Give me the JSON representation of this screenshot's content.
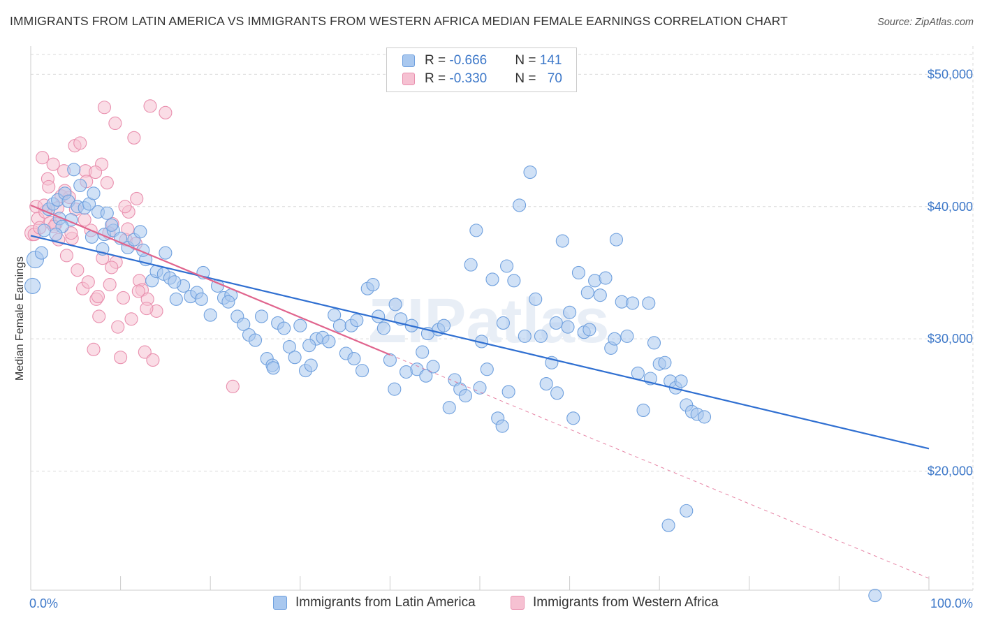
{
  "title": "IMMIGRANTS FROM LATIN AMERICA VS IMMIGRANTS FROM WESTERN AFRICA MEDIAN FEMALE EARNINGS CORRELATION CHART",
  "source": "Source: ZipAtlas.com",
  "watermark": "ZIPatlas",
  "colors": {
    "blue_fill": "#a9c8ef",
    "blue_stroke": "#6fa0de",
    "blue_line": "#2f6fd1",
    "pink_fill": "#f6c1d2",
    "pink_stroke": "#e98fae",
    "pink_line": "#e0648d",
    "grid": "#d9d9d9",
    "tick_label": "#3d78c9"
  },
  "legend": {
    "rows": [
      {
        "r_label": "R = ",
        "r_value": "-0.666",
        "n_label": "N = ",
        "n_value": "141"
      },
      {
        "r_label": "R = ",
        "r_value": "-0.330",
        "n_label": "N = ",
        "n_value": "70"
      }
    ]
  },
  "chart_data": {
    "type": "scatter",
    "ylabel": "Median Female Earnings",
    "xlabel": "",
    "x_ticks": [
      "0.0%",
      "100.0%"
    ],
    "y_ticks": [
      "$20,000",
      "$30,000",
      "$40,000",
      "$50,000"
    ],
    "y_tick_values": [
      20000,
      30000,
      40000,
      50000
    ],
    "xlim": [
      0,
      100
    ],
    "ylim": [
      11000,
      51500
    ],
    "grid": true,
    "legend_position": "top-center",
    "series": [
      {
        "name": "Immigrants from Latin America",
        "color": "blue",
        "r": -0.666,
        "n": 141,
        "trend": {
          "x": [
            0,
            100
          ],
          "y": [
            37800,
            21700
          ]
        },
        "points": [
          [
            0.2,
            34000
          ],
          [
            0.5,
            36000
          ],
          [
            1.5,
            38200
          ],
          [
            2,
            39800
          ],
          [
            2.5,
            40200
          ],
          [
            3,
            40500
          ],
          [
            3.2,
            39100
          ],
          [
            3.8,
            41000
          ],
          [
            4.2,
            40400
          ],
          [
            4.8,
            42800
          ],
          [
            5.2,
            40000
          ],
          [
            5.5,
            41600
          ],
          [
            6,
            39900
          ],
          [
            6.5,
            40200
          ],
          [
            7,
            41000
          ],
          [
            7.5,
            39600
          ],
          [
            8.2,
            37900
          ],
          [
            8.5,
            39500
          ],
          [
            9.2,
            38200
          ],
          [
            10,
            37600
          ],
          [
            10.8,
            36900
          ],
          [
            11.5,
            37500
          ],
          [
            12.2,
            38100
          ],
          [
            12.8,
            36000
          ],
          [
            13.5,
            34400
          ],
          [
            14,
            35100
          ],
          [
            14.8,
            34900
          ],
          [
            15.5,
            34600
          ],
          [
            16.2,
            33000
          ],
          [
            17,
            34000
          ],
          [
            17.8,
            33200
          ],
          [
            18.5,
            33500
          ],
          [
            19.2,
            35000
          ],
          [
            20,
            31800
          ],
          [
            20.8,
            34000
          ],
          [
            21.5,
            33100
          ],
          [
            22.3,
            33300
          ],
          [
            23,
            31700
          ],
          [
            23.7,
            31100
          ],
          [
            24.3,
            30300
          ],
          [
            25,
            29900
          ],
          [
            25.7,
            31700
          ],
          [
            26.3,
            28500
          ],
          [
            26.9,
            28000
          ],
          [
            27.5,
            31200
          ],
          [
            28.2,
            30800
          ],
          [
            28.8,
            29400
          ],
          [
            29.4,
            28600
          ],
          [
            30,
            31000
          ],
          [
            30.6,
            27600
          ],
          [
            31.2,
            28000
          ],
          [
            31.8,
            30000
          ],
          [
            32.5,
            30100
          ],
          [
            33.2,
            29800
          ],
          [
            33.8,
            31800
          ],
          [
            34.4,
            31000
          ],
          [
            35.1,
            28900
          ],
          [
            35.7,
            31000
          ],
          [
            36.3,
            31400
          ],
          [
            36.9,
            27600
          ],
          [
            37.5,
            33800
          ],
          [
            38.1,
            34100
          ],
          [
            38.7,
            31700
          ],
          [
            39.3,
            30800
          ],
          [
            40,
            28400
          ],
          [
            40.6,
            32600
          ],
          [
            41.2,
            31500
          ],
          [
            41.8,
            27500
          ],
          [
            42.4,
            31000
          ],
          [
            43,
            27700
          ],
          [
            43.6,
            29000
          ],
          [
            44.2,
            30400
          ],
          [
            44.8,
            27900
          ],
          [
            45.4,
            30700
          ],
          [
            46,
            31000
          ],
          [
            46.6,
            24800
          ],
          [
            47.2,
            26900
          ],
          [
            47.8,
            26200
          ],
          [
            48.4,
            25700
          ],
          [
            49,
            35600
          ],
          [
            49.6,
            38200
          ],
          [
            50.2,
            29800
          ],
          [
            50.8,
            27700
          ],
          [
            51.4,
            34500
          ],
          [
            52,
            24000
          ],
          [
            52.6,
            31200
          ],
          [
            53.2,
            26000
          ],
          [
            53.8,
            34400
          ],
          [
            54.4,
            40100
          ],
          [
            55,
            30200
          ],
          [
            55.6,
            42600
          ],
          [
            56.2,
            33000
          ],
          [
            56.8,
            30200
          ],
          [
            57.4,
            26600
          ],
          [
            58,
            28200
          ],
          [
            58.6,
            25900
          ],
          [
            59.2,
            37400
          ],
          [
            59.8,
            30900
          ],
          [
            60.4,
            24000
          ],
          [
            61,
            35000
          ],
          [
            61.6,
            30500
          ],
          [
            62.2,
            30700
          ],
          [
            62.8,
            34400
          ],
          [
            63.4,
            33300
          ],
          [
            64,
            34600
          ],
          [
            64.6,
            29300
          ],
          [
            65.2,
            37500
          ],
          [
            65.8,
            32800
          ],
          [
            66.4,
            30200
          ],
          [
            67,
            32700
          ],
          [
            67.6,
            27400
          ],
          [
            68.2,
            24600
          ],
          [
            68.8,
            32700
          ],
          [
            69.4,
            29700
          ],
          [
            70,
            28100
          ],
          [
            70.6,
            28200
          ],
          [
            71.2,
            26800
          ],
          [
            71.8,
            26300
          ],
          [
            72.4,
            26800
          ],
          [
            73,
            25000
          ],
          [
            73.6,
            24500
          ],
          [
            74.2,
            24300
          ],
          [
            75,
            24100
          ],
          [
            52.5,
            23400
          ],
          [
            71,
            15900
          ],
          [
            73,
            17000
          ],
          [
            94,
            10600
          ],
          [
            22,
            32800
          ],
          [
            19,
            33000
          ],
          [
            16,
            34300
          ],
          [
            12.5,
            36700
          ],
          [
            9,
            38600
          ],
          [
            8,
            36800
          ],
          [
            6.8,
            37700
          ],
          [
            4.5,
            39000
          ],
          [
            3.5,
            38500
          ],
          [
            2.8,
            37900
          ],
          [
            1.2,
            36500
          ],
          [
            15,
            36500
          ],
          [
            27,
            27800
          ],
          [
            36,
            28500
          ],
          [
            44,
            27200
          ],
          [
            58.5,
            31200
          ],
          [
            62,
            33500
          ],
          [
            65,
            30000
          ],
          [
            69,
            27000
          ],
          [
            50,
            26300
          ],
          [
            40.5,
            26200
          ],
          [
            53,
            35500
          ],
          [
            60,
            32000
          ],
          [
            31,
            29500
          ]
        ]
      },
      {
        "name": "Immigrants from Western Africa",
        "color": "pink",
        "r": -0.33,
        "n": 70,
        "trend": {
          "x": [
            0,
            40
          ],
          "y": [
            40100,
            28800
          ]
        },
        "trend_dashed": {
          "x": [
            40,
            100
          ],
          "y": [
            28800,
            11900
          ]
        },
        "points": [
          [
            0.2,
            38000
          ],
          [
            0.4,
            37900
          ],
          [
            0.6,
            40000
          ],
          [
            0.8,
            39100
          ],
          [
            1.0,
            38400
          ],
          [
            1.3,
            43700
          ],
          [
            1.6,
            39600
          ],
          [
            1.9,
            42100
          ],
          [
            2.2,
            38800
          ],
          [
            2.5,
            43200
          ],
          [
            2.8,
            38700
          ],
          [
            3.1,
            37500
          ],
          [
            3.4,
            40800
          ],
          [
            3.7,
            42700
          ],
          [
            4.0,
            36300
          ],
          [
            4.3,
            40700
          ],
          [
            4.6,
            37600
          ],
          [
            4.9,
            44600
          ],
          [
            5.2,
            35200
          ],
          [
            5.5,
            44800
          ],
          [
            5.8,
            33800
          ],
          [
            6.1,
            42700
          ],
          [
            6.4,
            34300
          ],
          [
            6.7,
            38200
          ],
          [
            7.0,
            29200
          ],
          [
            7.3,
            33000
          ],
          [
            7.6,
            31700
          ],
          [
            7.9,
            43200
          ],
          [
            8.2,
            47500
          ],
          [
            8.5,
            41800
          ],
          [
            8.8,
            34100
          ],
          [
            9.1,
            38700
          ],
          [
            9.4,
            46300
          ],
          [
            9.7,
            30900
          ],
          [
            10.0,
            28600
          ],
          [
            10.3,
            33100
          ],
          [
            10.6,
            37500
          ],
          [
            10.9,
            39600
          ],
          [
            11.2,
            31500
          ],
          [
            11.5,
            45200
          ],
          [
            11.8,
            40600
          ],
          [
            12.1,
            34400
          ],
          [
            12.4,
            33700
          ],
          [
            12.7,
            29000
          ],
          [
            13.0,
            33000
          ],
          [
            13.3,
            47600
          ],
          [
            13.6,
            28400
          ],
          [
            14,
            32100
          ],
          [
            15,
            47100
          ],
          [
            22.5,
            26400
          ],
          [
            2.0,
            41500
          ],
          [
            3.0,
            39900
          ],
          [
            4.5,
            38000
          ],
          [
            6.0,
            39000
          ],
          [
            7.5,
            33200
          ],
          [
            8.7,
            38000
          ],
          [
            9.5,
            35800
          ],
          [
            10.5,
            40000
          ],
          [
            11.7,
            37200
          ],
          [
            12.9,
            32300
          ],
          [
            1.5,
            40100
          ],
          [
            2.6,
            38500
          ],
          [
            3.8,
            41200
          ],
          [
            5.0,
            39800
          ],
          [
            6.2,
            41900
          ],
          [
            7.2,
            42600
          ],
          [
            8.0,
            36100
          ],
          [
            9.0,
            35400
          ],
          [
            10.8,
            38300
          ],
          [
            12.0,
            33600
          ]
        ]
      }
    ]
  }
}
